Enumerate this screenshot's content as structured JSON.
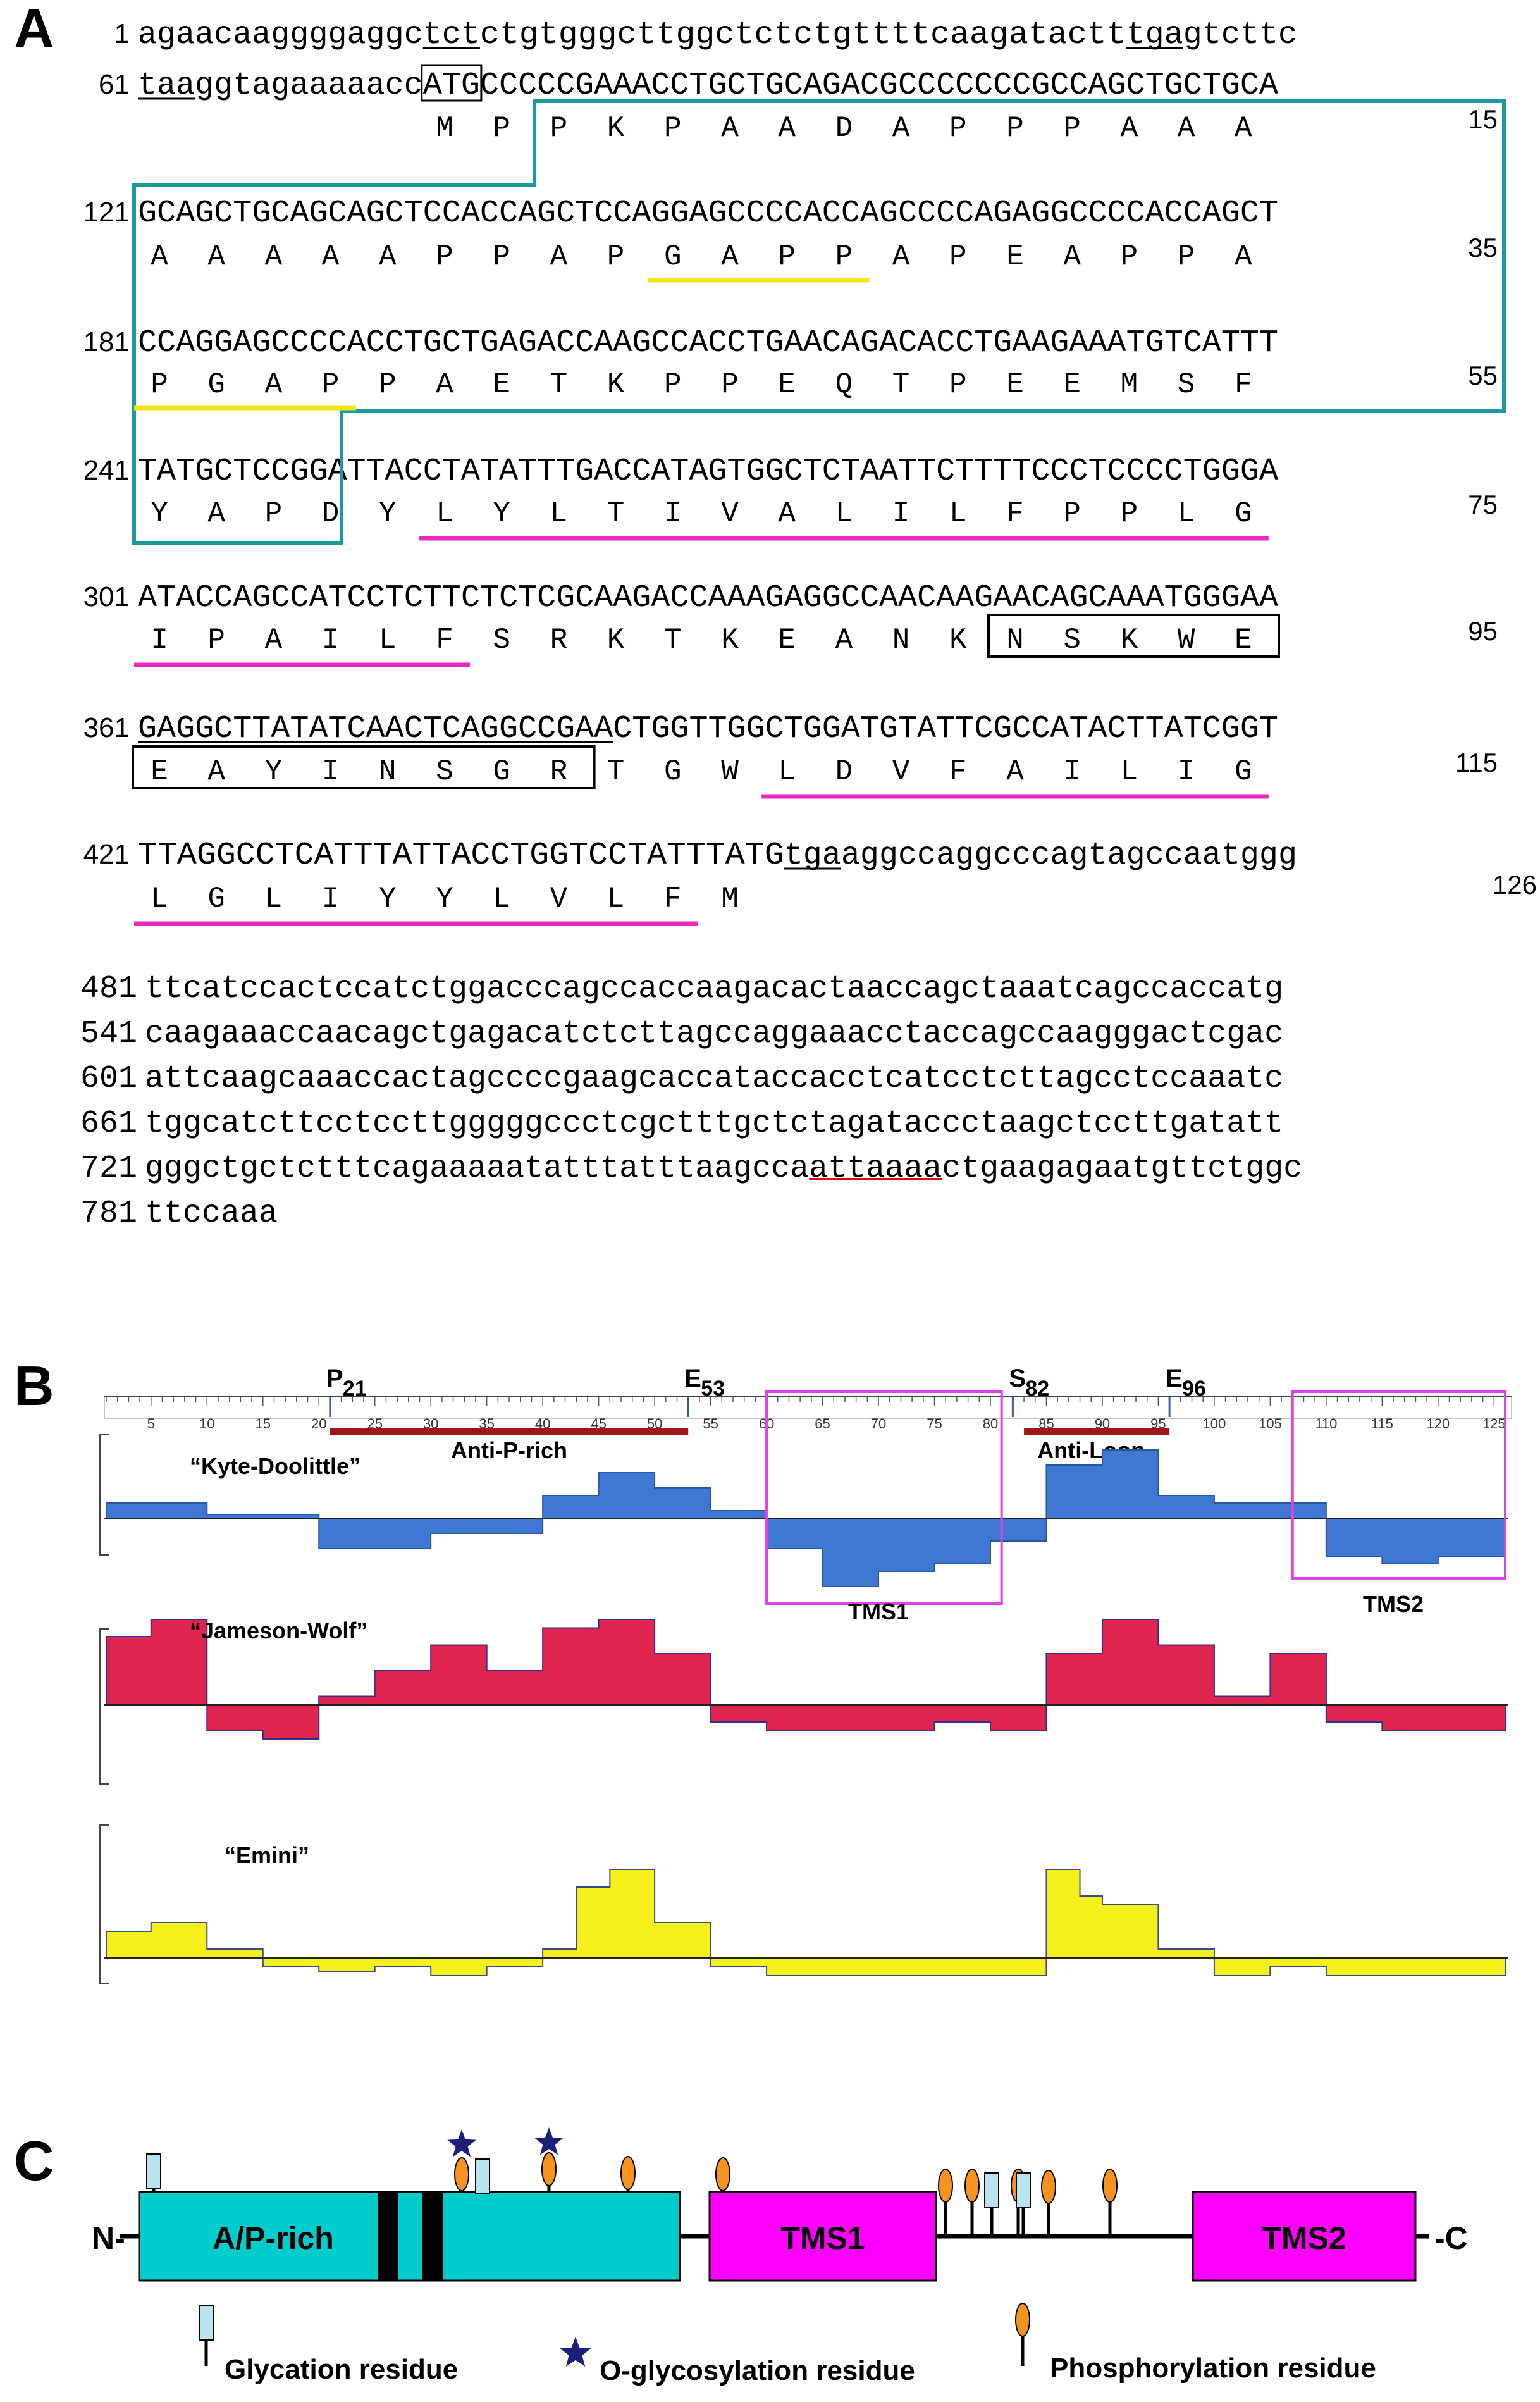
{
  "panels": {
    "a": "A",
    "b": "B",
    "c": "C"
  },
  "sequence": {
    "rows": [
      {
        "num": "1",
        "seg": [
          {
            "t": "agaacaaggggaggc"
          },
          {
            "t": "tct",
            "u": true
          },
          {
            "t": "ctgtgggcttggctctctgttttcaagatactt "
          },
          {
            "t": "tga",
            "u": true
          },
          {
            "t": "gtcttc"
          }
        ]
      },
      {
        "num": "61",
        "seg": [
          {
            "t": "taa",
            "u": true
          },
          {
            "t": "ggtagaaaaacc"
          },
          {
            "t": "ATG",
            "box": true
          },
          {
            "t": "CCCCCGAAACCTGCTGCAGACGCCCCCCCGCCAGCTGCTGCA"
          }
        ]
      },
      {
        "num": "121",
        "seg": [
          {
            "t": "GCAGCTGCAGCAGCTCCACCAGCTCCAGGAGCCCCACCAGCCCCAGAGGCCCCACCAGCT"
          }
        ]
      },
      {
        "num": "181",
        "seg": [
          {
            "t": "CCAGGAGCCCCACCTGCTGAGACCAAGCCACCTGAACAGACACCTGAAGAAATGTCATTT"
          }
        ]
      },
      {
        "num": "241",
        "seg": [
          {
            "t": "TATGCTCCGGATTACCTATATTTGACCATAGTGGCTCTAATTCTTTTCCCTCCCCTGGGA"
          }
        ]
      },
      {
        "num": "301",
        "seg": [
          {
            "t": "ATACCAGCCATCCTCTTCTCTCGCAAGACCAAAGAGGCCAACAAGAACAGCAAATGGGAA"
          }
        ]
      },
      {
        "num": "361",
        "seg": [
          {
            "t": "GAGGCTTATATCAACTCAGGCCGAA",
            "u": true
          },
          {
            "t": "CTGGTTGGCTGGATGTATTCGCCATACTTATCGGT"
          }
        ]
      },
      {
        "num": "421",
        "seg": [
          {
            "t": "TTAGGCCTCATTTATTACCTGGTCCTATTTATG "
          },
          {
            "t": "tga",
            "u": true
          },
          {
            "t": "aggccaggcccagtagccaatggg"
          }
        ]
      }
    ],
    "aa_rows": [
      {
        "aa": "M P P K P A A D A P P P A A A",
        "end": "15"
      },
      {
        "aa": "A A A A A P P A P G A P P A P E A P P A",
        "end": "35"
      },
      {
        "aa": "P G A P P A E T K P P E Q T P E E M S F",
        "end": "55"
      },
      {
        "aa": "Y A P D Y L Y L T I V A L I L F P P L G",
        "end": "75"
      },
      {
        "aa": "I P A I L F S R K T K E A N K N S K W E",
        "end": "95"
      },
      {
        "aa": "E A Y I N S G R T G W L D V F A I L I G",
        "end": "115"
      },
      {
        "aa": "L G L I Y Y L V L F M",
        "end": "126"
      }
    ],
    "tail": [
      {
        "num": "481",
        "t": "ttcatccactccatctggacccagccaccaagacactaaccagctaaatcagccaccatg"
      },
      {
        "num": "541",
        "t": "caagaaaccaacagctgagacatctcttagccaggaaacctaccagccaagggactcgac"
      },
      {
        "num": "601",
        "t": "attcaagcaaaccactagccccgaagcaccataccacctcatcctcttagcctccaaatc"
      },
      {
        "num": "661",
        "t": "tggcatcttcctccttgggggccctcgctttgctctagataccctaagctccttgatatt"
      },
      {
        "num": "721",
        "t": "gggctgctctttcagaaaaatatttatttaagcca",
        "t2": "attaaaa",
        "t3": "ctgaagagaatgttctggc"
      },
      {
        "num": "781",
        "t": "ttccaaa"
      }
    ]
  },
  "plots": {
    "markers": [
      {
        "letter": "P",
        "sub": "21",
        "res": 21
      },
      {
        "letter": "E",
        "sub": "53",
        "res": 53
      },
      {
        "letter": "S",
        "sub": "82",
        "res": 82
      },
      {
        "letter": "E",
        "sub": "96",
        "res": 96
      }
    ],
    "ticks": [
      "5",
      "10",
      "15",
      "20",
      "25",
      "30",
      "35",
      "40",
      "45",
      "50",
      "55",
      "60",
      "65",
      "70",
      "75",
      "80",
      "85",
      "90",
      "95",
      "100",
      "105",
      "110",
      "115",
      "120",
      "125"
    ],
    "anti_p_rich": "Anti-P-rich",
    "anti_loop": "Anti-Loop",
    "kd_label": "“Kyte-Doolittle”",
    "jw_label": "“Jameson-Wolf”",
    "emini_label": "“Emini”",
    "tms1": "TMS1",
    "tms2": "TMS2",
    "colors": {
      "kd": "#3f78d2",
      "jw": "#e0254f",
      "emini": "#f5f019",
      "box": "#e040e8",
      "bar": "#a0161a"
    }
  },
  "chart_data": [
    {
      "type": "area",
      "title": "Kyte-Doolittle",
      "x_range": [
        1,
        126
      ],
      "note": "hydropathy profile, positive above baseline",
      "x": [
        1,
        10,
        20,
        30,
        40,
        45,
        50,
        55,
        60,
        65,
        70,
        75,
        80,
        85,
        90,
        95,
        100,
        105,
        110,
        115,
        120,
        126
      ],
      "values": [
        0.2,
        0.05,
        -0.4,
        -0.2,
        0.3,
        0.6,
        0.4,
        0.1,
        -0.4,
        -0.9,
        -0.7,
        -0.6,
        -0.3,
        0.7,
        0.9,
        0.3,
        0.2,
        0.2,
        -0.5,
        -0.6,
        -0.5,
        -0.4
      ]
    },
    {
      "type": "area",
      "title": "Jameson-Wolf",
      "x_range": [
        1,
        126
      ],
      "x": [
        1,
        5,
        10,
        15,
        20,
        25,
        30,
        35,
        40,
        45,
        50,
        55,
        60,
        65,
        70,
        75,
        80,
        85,
        90,
        95,
        100,
        105,
        110,
        115,
        120,
        126
      ],
      "values": [
        0.8,
        1.0,
        -0.3,
        -0.4,
        0.1,
        0.4,
        0.7,
        0.4,
        0.9,
        1.0,
        0.6,
        -0.2,
        -0.3,
        -0.3,
        -0.3,
        -0.2,
        -0.3,
        0.6,
        1.0,
        0.7,
        0.1,
        0.6,
        -0.2,
        -0.3,
        -0.3,
        -0.3
      ]
    },
    {
      "type": "area",
      "title": "Emini",
      "x_range": [
        1,
        126
      ],
      "x": [
        1,
        5,
        10,
        15,
        20,
        25,
        30,
        35,
        40,
        43,
        46,
        50,
        55,
        60,
        65,
        70,
        75,
        80,
        85,
        88,
        90,
        95,
        100,
        105,
        110,
        115,
        120,
        126
      ],
      "values": [
        0.3,
        0.4,
        0.1,
        -0.1,
        -0.15,
        -0.1,
        -0.2,
        -0.1,
        0.1,
        0.8,
        1.0,
        0.4,
        -0.1,
        -0.2,
        -0.2,
        -0.2,
        -0.2,
        -0.2,
        1.0,
        0.7,
        0.6,
        0.1,
        -0.2,
        -0.1,
        -0.2,
        -0.2,
        -0.2,
        -0.2
      ]
    }
  ],
  "domains": {
    "n": "N-",
    "c": "-C",
    "ap": "A/P-rich",
    "tms1": "TMS1",
    "tms2": "TMS2",
    "legend_glyc": "Glycation residue",
    "legend_oglyc": "O-glycosylation residue",
    "legend_phos": "Phosphorylation residue",
    "colors": {
      "ap": "#00cccc",
      "tms": "#ff00ff",
      "glyc": "#b7e4ee",
      "phos": "#f5931e",
      "star": "#1a1f78"
    }
  }
}
